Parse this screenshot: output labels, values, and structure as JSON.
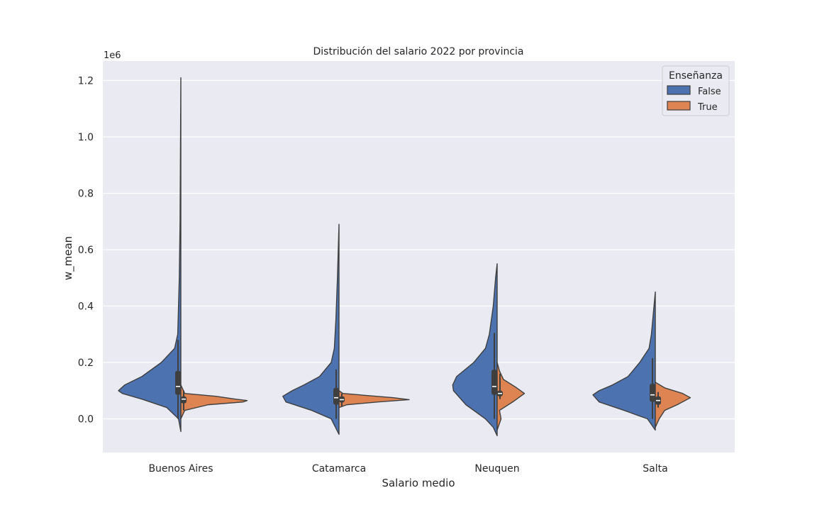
{
  "chart_data": {
    "type": "violin",
    "title": "Distribución del salario 2022 por provincia",
    "xlabel": "Salario medio",
    "ylabel": "w_mean",
    "y_scale_label": "1e6",
    "y_multiplier": 1000000,
    "ylim": [
      -0.12,
      1.27
    ],
    "y_ticks": [
      0.0,
      0.2,
      0.4,
      0.6,
      0.8,
      1.0,
      1.2
    ],
    "y_tick_labels": [
      "0.0",
      "0.2",
      "0.4",
      "0.6",
      "0.8",
      "1.0",
      "1.2"
    ],
    "categories": [
      "Buenos Aires",
      "Catamarca",
      "Neuquen",
      "Salta"
    ],
    "grid": true,
    "legend": {
      "title": "Enseñanza",
      "position": "top-right",
      "entries": [
        "False",
        "True"
      ]
    },
    "colors": {
      "False": "#4c72b0",
      "True": "#dd8452",
      "background": "#eaeaf2",
      "box": "#3f3f3f"
    },
    "series": [
      {
        "name": "False",
        "side": "left",
        "groups": [
          {
            "category": "Buenos Aires",
            "profile": [
              [
                -0.045,
                0.0
              ],
              [
                0.0,
                0.03
              ],
              [
                0.04,
                0.18
              ],
              [
                0.07,
                0.5
              ],
              [
                0.09,
                0.75
              ],
              [
                0.1,
                0.8
              ],
              [
                0.12,
                0.72
              ],
              [
                0.15,
                0.5
              ],
              [
                0.2,
                0.25
              ],
              [
                0.25,
                0.08
              ],
              [
                0.3,
                0.04
              ],
              [
                0.5,
                0.02
              ],
              [
                0.7,
                0.01
              ],
              [
                1.21,
                0.0
              ]
            ],
            "quartiles": [
              0.085,
              0.115,
              0.17
            ],
            "whiskers": [
              0.0,
              0.28
            ]
          },
          {
            "category": "Catamarca",
            "profile": [
              [
                -0.055,
                0.0
              ],
              [
                0.0,
                0.1
              ],
              [
                0.03,
                0.35
              ],
              [
                0.06,
                0.68
              ],
              [
                0.08,
                0.72
              ],
              [
                0.1,
                0.6
              ],
              [
                0.12,
                0.45
              ],
              [
                0.15,
                0.25
              ],
              [
                0.2,
                0.1
              ],
              [
                0.25,
                0.06
              ],
              [
                0.35,
                0.04
              ],
              [
                0.5,
                0.02
              ],
              [
                0.69,
                0.0
              ]
            ],
            "quartiles": [
              0.05,
              0.075,
              0.11
            ],
            "whiskers": [
              0.0,
              0.175
            ]
          },
          {
            "category": "Neuquen",
            "profile": [
              [
                -0.06,
                0.0
              ],
              [
                -0.03,
                0.05
              ],
              [
                0.0,
                0.15
              ],
              [
                0.05,
                0.4
              ],
              [
                0.1,
                0.56
              ],
              [
                0.12,
                0.57
              ],
              [
                0.15,
                0.52
              ],
              [
                0.2,
                0.3
              ],
              [
                0.25,
                0.15
              ],
              [
                0.3,
                0.1
              ],
              [
                0.4,
                0.05
              ],
              [
                0.5,
                0.02
              ],
              [
                0.55,
                0.0
              ]
            ],
            "quartiles": [
              0.085,
              0.115,
              0.175
            ],
            "whiskers": [
              0.0,
              0.305
            ]
          },
          {
            "category": "Salta",
            "profile": [
              [
                -0.04,
                0.0
              ],
              [
                0.0,
                0.1
              ],
              [
                0.03,
                0.4
              ],
              [
                0.06,
                0.72
              ],
              [
                0.085,
                0.8
              ],
              [
                0.1,
                0.72
              ],
              [
                0.12,
                0.55
              ],
              [
                0.15,
                0.35
              ],
              [
                0.2,
                0.2
              ],
              [
                0.25,
                0.08
              ],
              [
                0.3,
                0.05
              ],
              [
                0.45,
                0.0
              ]
            ],
            "quartiles": [
              0.06,
              0.085,
              0.125
            ],
            "whiskers": [
              0.0,
              0.215
            ]
          }
        ]
      },
      {
        "name": "True",
        "side": "right",
        "groups": [
          {
            "category": "Buenos Aires",
            "profile": [
              [
                0.0,
                0.0
              ],
              [
                0.03,
                0.05
              ],
              [
                0.05,
                0.35
              ],
              [
                0.06,
                0.8
              ],
              [
                0.065,
                0.85
              ],
              [
                0.07,
                0.7
              ],
              [
                0.08,
                0.45
              ],
              [
                0.09,
                0.05
              ],
              [
                0.12,
                0.0
              ]
            ],
            "quartiles": [
              0.055,
              0.07,
              0.08
            ],
            "whiskers": [
              0.03,
              0.1
            ]
          },
          {
            "category": "Catamarca",
            "profile": [
              [
                0.04,
                0.0
              ],
              [
                0.05,
                0.1
              ],
              [
                0.06,
                0.5
              ],
              [
                0.068,
                0.9
              ],
              [
                0.075,
                0.7
              ],
              [
                0.09,
                0.05
              ],
              [
                0.1,
                0.0
              ]
            ],
            "quartiles": [
              0.058,
              0.068,
              0.08
            ],
            "whiskers": [
              0.045,
              0.09
            ]
          },
          {
            "category": "Neuquen",
            "profile": [
              [
                -0.04,
                0.0
              ],
              [
                0.0,
                0.05
              ],
              [
                0.03,
                0.03
              ],
              [
                0.06,
                0.2
              ],
              [
                0.09,
                0.35
              ],
              [
                0.11,
                0.25
              ],
              [
                0.14,
                0.08
              ],
              [
                0.17,
                0.03
              ],
              [
                0.2,
                0.0
              ]
            ],
            "quartiles": [
              0.08,
              0.09,
              0.1
            ],
            "whiskers": [
              0.07,
              0.16
            ]
          },
          {
            "category": "Salta",
            "profile": [
              [
                -0.03,
                0.0
              ],
              [
                0.0,
                0.05
              ],
              [
                0.03,
                0.12
              ],
              [
                0.05,
                0.28
              ],
              [
                0.075,
                0.45
              ],
              [
                0.09,
                0.35
              ],
              [
                0.11,
                0.12
              ],
              [
                0.13,
                0.0
              ]
            ],
            "quartiles": [
              0.05,
              0.065,
              0.08
            ],
            "whiskers": [
              0.04,
              0.095
            ]
          }
        ]
      }
    ]
  }
}
